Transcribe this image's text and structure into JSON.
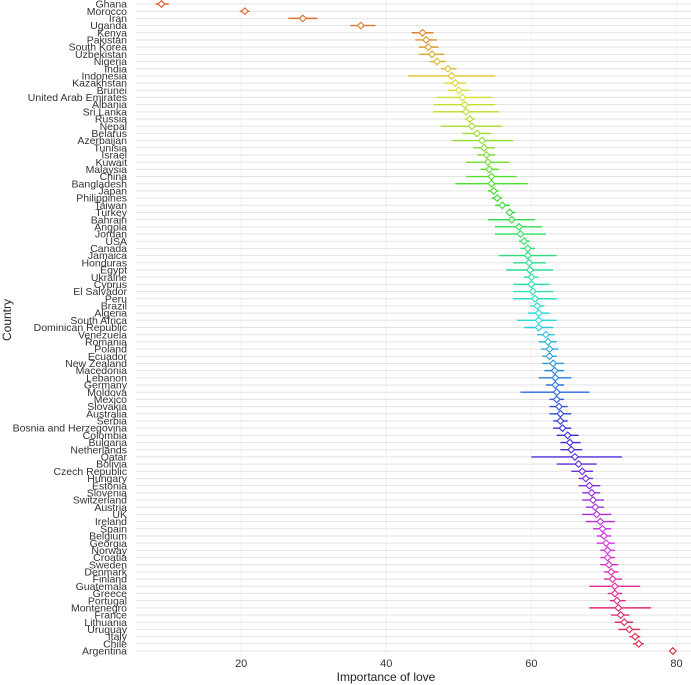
{
  "chart_data": {
    "type": "scatter",
    "xlabel": "Importance of love",
    "ylabel": "Country",
    "xlim": [
      5.5,
      82
    ],
    "x_ticks": [
      20,
      40,
      60,
      80
    ],
    "grid": true,
    "legend": "none",
    "colors_note": "hue gradient from red (top) through olive, green, cyan, blue, purple, magenta back to red (bottom)",
    "points": [
      {
        "country": "Ghana",
        "mean": 9.0,
        "lo": 8.2,
        "hi": 10.0
      },
      {
        "country": "Morocco",
        "mean": 20.5,
        "lo": 19.8,
        "hi": 21.2
      },
      {
        "country": "Iran",
        "mean": 28.5,
        "lo": 26.5,
        "hi": 30.5
      },
      {
        "country": "Uganda",
        "mean": 36.5,
        "lo": 35.0,
        "hi": 38.5
      },
      {
        "country": "Kenya",
        "mean": 45.0,
        "lo": 43.5,
        "hi": 46.5
      },
      {
        "country": "Pakistan",
        "mean": 45.5,
        "lo": 44.0,
        "hi": 47.0
      },
      {
        "country": "South Korea",
        "mean": 45.8,
        "lo": 44.5,
        "hi": 47.2
      },
      {
        "country": "Uzbekistan",
        "mean": 46.3,
        "lo": 44.5,
        "hi": 48.0
      },
      {
        "country": "Nigeria",
        "mean": 47.0,
        "lo": 46.0,
        "hi": 48.2
      },
      {
        "country": "India",
        "mean": 48.5,
        "lo": 47.5,
        "hi": 49.7
      },
      {
        "country": "Indonesia",
        "mean": 49.0,
        "lo": 43.0,
        "hi": 55.0
      },
      {
        "country": "Kazakhstan",
        "mean": 49.5,
        "lo": 48.0,
        "hi": 51.0
      },
      {
        "country": "Brunei",
        "mean": 50.0,
        "lo": 48.5,
        "hi": 51.5
      },
      {
        "country": "United Arab Emirates",
        "mean": 50.5,
        "lo": 47.0,
        "hi": 54.5
      },
      {
        "country": "Albania",
        "mean": 50.8,
        "lo": 46.5,
        "hi": 55.0
      },
      {
        "country": "Sri Lanka",
        "mean": 51.0,
        "lo": 46.5,
        "hi": 55.5
      },
      {
        "country": "Russia",
        "mean": 51.5,
        "lo": 50.8,
        "hi": 52.2
      },
      {
        "country": "Nepal",
        "mean": 51.8,
        "lo": 47.5,
        "hi": 56.0
      },
      {
        "country": "Belarus",
        "mean": 52.5,
        "lo": 50.5,
        "hi": 54.5
      },
      {
        "country": "Azerbaijan",
        "mean": 53.2,
        "lo": 49.0,
        "hi": 57.5
      },
      {
        "country": "Tunisia",
        "mean": 53.5,
        "lo": 52.0,
        "hi": 55.0
      },
      {
        "country": "Israel",
        "mean": 53.8,
        "lo": 52.5,
        "hi": 55.0
      },
      {
        "country": "Kuwait",
        "mean": 54.0,
        "lo": 51.0,
        "hi": 57.0
      },
      {
        "country": "Malaysia",
        "mean": 54.2,
        "lo": 53.0,
        "hi": 55.5
      },
      {
        "country": "China",
        "mean": 54.5,
        "lo": 51.0,
        "hi": 58.0
      },
      {
        "country": "Bangladesh",
        "mean": 54.5,
        "lo": 49.5,
        "hi": 59.5
      },
      {
        "country": "Japan",
        "mean": 54.8,
        "lo": 54.0,
        "hi": 55.5
      },
      {
        "country": "Philippines",
        "mean": 55.3,
        "lo": 54.5,
        "hi": 56.0
      },
      {
        "country": "Taiwan",
        "mean": 56.0,
        "lo": 55.0,
        "hi": 57.0
      },
      {
        "country": "Turkey",
        "mean": 57.0,
        "lo": 56.5,
        "hi": 57.8
      },
      {
        "country": "Bahrain",
        "mean": 57.3,
        "lo": 54.0,
        "hi": 60.5
      },
      {
        "country": "Angola",
        "mean": 58.3,
        "lo": 55.0,
        "hi": 61.5
      },
      {
        "country": "Jordan",
        "mean": 58.5,
        "lo": 55.0,
        "hi": 62.0
      },
      {
        "country": "USA",
        "mean": 59.0,
        "lo": 58.3,
        "hi": 59.8
      },
      {
        "country": "Canada",
        "mean": 59.5,
        "lo": 58.5,
        "hi": 60.5
      },
      {
        "country": "Jamaica",
        "mean": 59.5,
        "lo": 55.5,
        "hi": 63.5
      },
      {
        "country": "Honduras",
        "mean": 59.7,
        "lo": 57.5,
        "hi": 62.0
      },
      {
        "country": "Egypt",
        "mean": 59.8,
        "lo": 56.5,
        "hi": 63.0
      },
      {
        "country": "Ukraine",
        "mean": 60.0,
        "lo": 59.0,
        "hi": 61.0
      },
      {
        "country": "Cyprus",
        "mean": 60.0,
        "lo": 57.5,
        "hi": 62.5
      },
      {
        "country": "El Salvador",
        "mean": 60.2,
        "lo": 57.5,
        "hi": 63.0
      },
      {
        "country": "Peru",
        "mean": 60.5,
        "lo": 57.5,
        "hi": 63.5
      },
      {
        "country": "Brazil",
        "mean": 60.8,
        "lo": 59.8,
        "hi": 61.8
      },
      {
        "country": "Algeria",
        "mean": 61.0,
        "lo": 59.5,
        "hi": 62.5
      },
      {
        "country": "South Africa",
        "mean": 61.0,
        "lo": 58.0,
        "hi": 63.5
      },
      {
        "country": "Dominican Republic",
        "mean": 61.0,
        "lo": 59.0,
        "hi": 63.0
      },
      {
        "country": "Venezuela",
        "mean": 62.0,
        "lo": 60.8,
        "hi": 63.2
      },
      {
        "country": "Romania",
        "mean": 62.3,
        "lo": 61.0,
        "hi": 63.5
      },
      {
        "country": "Poland",
        "mean": 62.5,
        "lo": 61.3,
        "hi": 63.7
      },
      {
        "country": "Ecuador",
        "mean": 62.5,
        "lo": 61.5,
        "hi": 63.5
      },
      {
        "country": "New Zealand",
        "mean": 63.0,
        "lo": 61.5,
        "hi": 64.5
      },
      {
        "country": "Macedonia",
        "mean": 63.2,
        "lo": 61.8,
        "hi": 64.5
      },
      {
        "country": "Lebanon",
        "mean": 63.3,
        "lo": 61.0,
        "hi": 65.5
      },
      {
        "country": "Germany",
        "mean": 63.3,
        "lo": 62.0,
        "hi": 64.5
      },
      {
        "country": "Moldova",
        "mean": 63.5,
        "lo": 58.5,
        "hi": 68.0
      },
      {
        "country": "Mexico",
        "mean": 63.5,
        "lo": 62.5,
        "hi": 64.5
      },
      {
        "country": "Slovakia",
        "mean": 63.8,
        "lo": 62.5,
        "hi": 65.0
      },
      {
        "country": "Australia",
        "mean": 64.0,
        "lo": 62.5,
        "hi": 65.5
      },
      {
        "country": "Serbia",
        "mean": 64.0,
        "lo": 63.0,
        "hi": 65.0
      },
      {
        "country": "Bosnia and Herzegovina",
        "mean": 64.3,
        "lo": 63.0,
        "hi": 65.5
      },
      {
        "country": "Colombia",
        "mean": 65.0,
        "lo": 63.5,
        "hi": 66.5
      },
      {
        "country": "Bulgaria",
        "mean": 65.3,
        "lo": 64.0,
        "hi": 66.8
      },
      {
        "country": "Netherlands",
        "mean": 65.5,
        "lo": 64.0,
        "hi": 67.0
      },
      {
        "country": "Qatar",
        "mean": 66.0,
        "lo": 60.0,
        "hi": 72.5
      },
      {
        "country": "Bolivia",
        "mean": 66.5,
        "lo": 63.5,
        "hi": 69.0
      },
      {
        "country": "Czech Republic",
        "mean": 67.0,
        "lo": 65.5,
        "hi": 68.5
      },
      {
        "country": "Hungary",
        "mean": 67.5,
        "lo": 66.5,
        "hi": 68.5
      },
      {
        "country": "Estonia",
        "mean": 68.0,
        "lo": 66.5,
        "hi": 69.5
      },
      {
        "country": "Slovenia",
        "mean": 68.3,
        "lo": 67.0,
        "hi": 69.5
      },
      {
        "country": "Switzerland",
        "mean": 68.5,
        "lo": 67.0,
        "hi": 70.0
      },
      {
        "country": "Austria",
        "mean": 68.8,
        "lo": 67.5,
        "hi": 70.0
      },
      {
        "country": "UK",
        "mean": 69.0,
        "lo": 67.0,
        "hi": 71.0
      },
      {
        "country": "Ireland",
        "mean": 69.5,
        "lo": 67.5,
        "hi": 71.5
      },
      {
        "country": "Spain",
        "mean": 69.8,
        "lo": 68.5,
        "hi": 71.0
      },
      {
        "country": "Belgium",
        "mean": 70.0,
        "lo": 69.0,
        "hi": 71.0
      },
      {
        "country": "Georgia",
        "mean": 70.3,
        "lo": 69.0,
        "hi": 71.5
      },
      {
        "country": "Norway",
        "mean": 70.5,
        "lo": 69.5,
        "hi": 71.5
      },
      {
        "country": "Croatia",
        "mean": 70.5,
        "lo": 69.5,
        "hi": 71.5
      },
      {
        "country": "Sweden",
        "mean": 70.7,
        "lo": 69.5,
        "hi": 72.0
      },
      {
        "country": "Denmark",
        "mean": 71.0,
        "lo": 70.0,
        "hi": 72.0
      },
      {
        "country": "Finland",
        "mean": 71.2,
        "lo": 70.0,
        "hi": 72.5
      },
      {
        "country": "Guatemala",
        "mean": 71.5,
        "lo": 68.0,
        "hi": 75.0
      },
      {
        "country": "Greece",
        "mean": 71.5,
        "lo": 70.5,
        "hi": 72.5
      },
      {
        "country": "Portugal",
        "mean": 71.8,
        "lo": 70.8,
        "hi": 73.0
      },
      {
        "country": "Montenegro",
        "mean": 72.0,
        "lo": 68.0,
        "hi": 76.5
      },
      {
        "country": "France",
        "mean": 72.3,
        "lo": 71.0,
        "hi": 73.5
      },
      {
        "country": "Lithuania",
        "mean": 72.8,
        "lo": 71.5,
        "hi": 74.0
      },
      {
        "country": "Uruguay",
        "mean": 73.5,
        "lo": 72.0,
        "hi": 75.0
      },
      {
        "country": "Italy",
        "mean": 74.3,
        "lo": 73.5,
        "hi": 75.0
      },
      {
        "country": "Chile",
        "mean": 74.8,
        "lo": 74.0,
        "hi": 75.5
      },
      {
        "country": "Argentina",
        "mean": 79.5,
        "lo": 79.0,
        "hi": 80.0
      }
    ]
  }
}
